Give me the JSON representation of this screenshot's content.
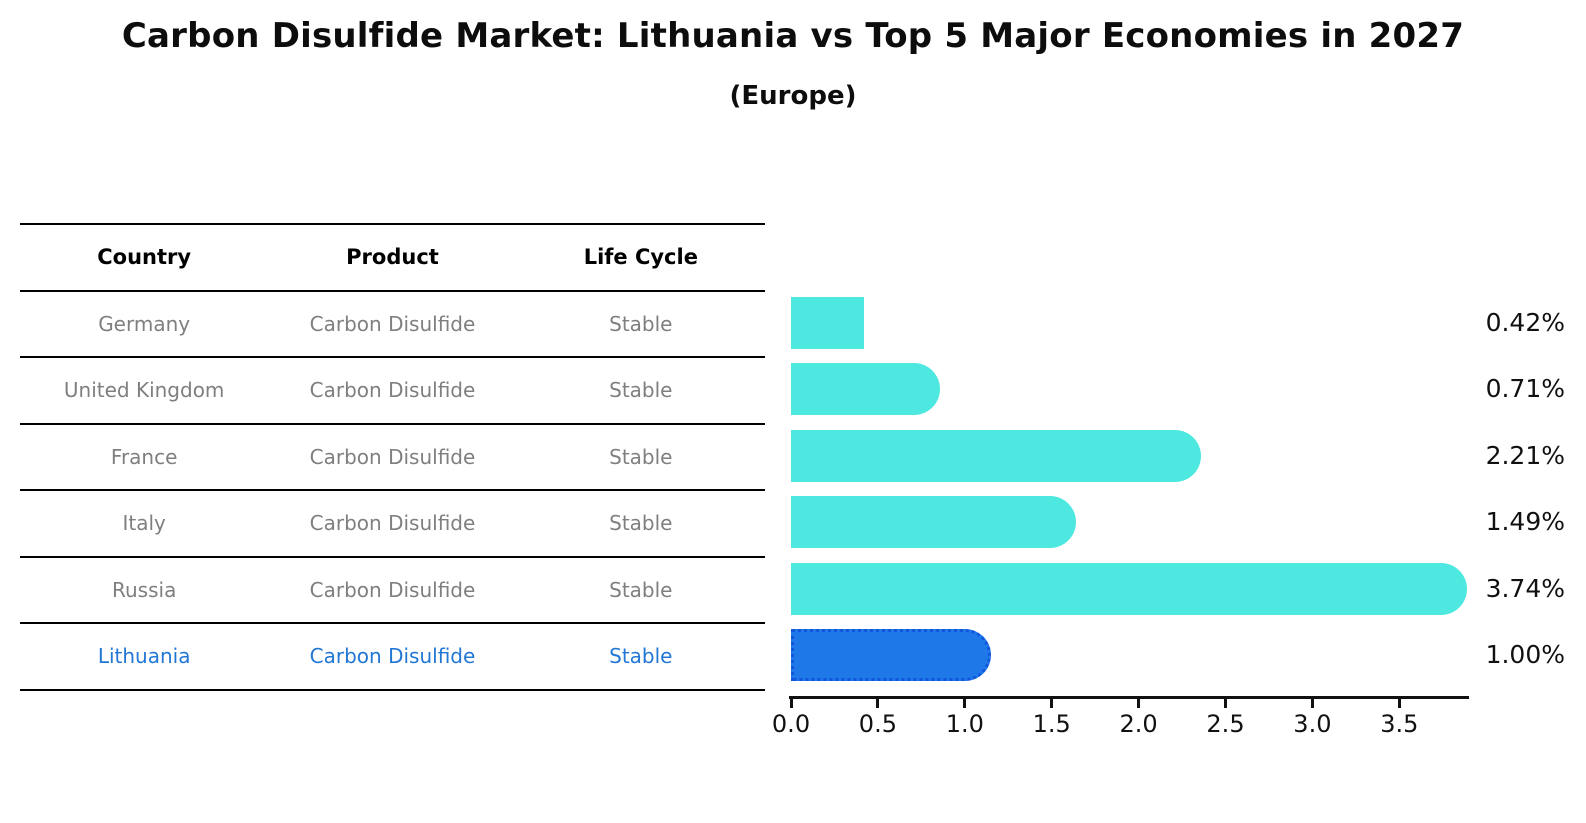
{
  "title": "Carbon Disulfide Market: Lithuania vs Top 5 Major Economies in 2027",
  "subtitle": "(Europe)",
  "table": {
    "headers": [
      "Country",
      "Product",
      "Life Cycle"
    ],
    "rows": [
      {
        "country": "Germany",
        "product": "Carbon Disulfide",
        "life_cycle": "Stable",
        "highlight": false
      },
      {
        "country": "United Kingdom",
        "product": "Carbon Disulfide",
        "life_cycle": "Stable",
        "highlight": false
      },
      {
        "country": "France",
        "product": "Carbon Disulfide",
        "life_cycle": "Stable",
        "highlight": false
      },
      {
        "country": "Italy",
        "product": "Carbon Disulfide",
        "life_cycle": "Stable",
        "highlight": false
      },
      {
        "country": "Russia",
        "product": "Carbon Disulfide",
        "life_cycle": "Stable",
        "highlight": false
      },
      {
        "country": "Lithuania",
        "product": "Carbon Disulfide",
        "life_cycle": "Stable",
        "highlight": true
      }
    ]
  },
  "chart_data": {
    "type": "bar",
    "orientation": "horizontal",
    "title": "Carbon Disulfide Market: Lithuania vs Top 5 Major Economies in 2027",
    "subtitle": "(Europe)",
    "categories": [
      "Germany",
      "United Kingdom",
      "France",
      "Italy",
      "Russia",
      "Lithuania"
    ],
    "values": [
      0.42,
      0.71,
      2.21,
      1.49,
      3.74,
      1.0
    ],
    "value_labels": [
      "0.42%",
      "0.71%",
      "2.21%",
      "1.49%",
      "3.74%",
      "1.00%"
    ],
    "highlight_index": 5,
    "x_ticks": [
      0.0,
      0.5,
      1.0,
      1.5,
      2.0,
      2.5,
      3.0,
      3.5
    ],
    "x_tick_labels": [
      "0.0",
      "0.5",
      "1.0",
      "1.5",
      "2.0",
      "2.5",
      "3.0",
      "3.5"
    ],
    "xlim": [
      0,
      3.9
    ],
    "grid": false,
    "legend": false,
    "colors": {
      "bar": "#4DE8E0",
      "highlight_bar": "#1F78E8",
      "highlight_bar_edge": "#1155DD",
      "row_text": "#7F7F7F",
      "highlight_text": "#2277D4",
      "axis_text": "#111111"
    }
  }
}
